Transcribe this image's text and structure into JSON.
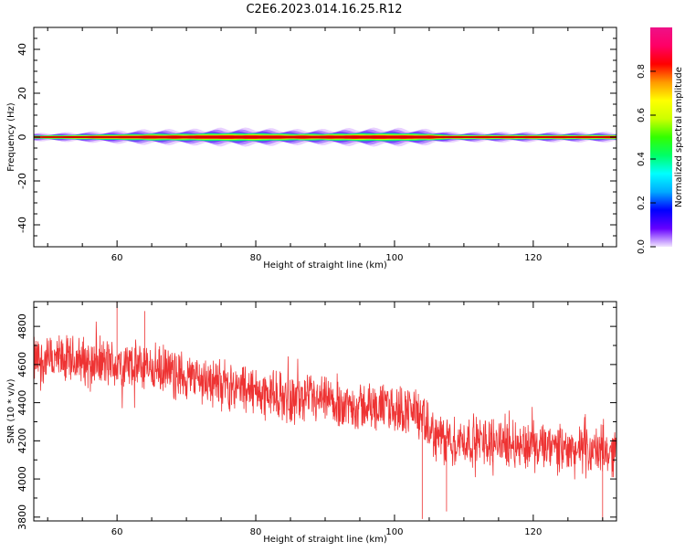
{
  "title": "C2E6.2023.014.16.25.R12",
  "chart_data": [
    {
      "type": "heatmap",
      "xlabel": "Height of straight line (km)",
      "ylabel": "Frequency (Hz)",
      "xlim": [
        48,
        132
      ],
      "ylim": [
        -50,
        50
      ],
      "xticks": [
        60,
        80,
        100,
        120
      ],
      "yticks": [
        -40,
        -20,
        0,
        20,
        40
      ],
      "description_value": "spectral energy concentrated near 0 Hz across all heights",
      "center_frequency": 0,
      "band_halfwidth": [
        [
          48,
          1.5
        ],
        [
          55,
          2
        ],
        [
          60,
          2.5
        ],
        [
          65,
          3
        ],
        [
          70,
          3
        ],
        [
          75,
          3.5
        ],
        [
          80,
          3.5
        ],
        [
          85,
          3
        ],
        [
          90,
          3
        ],
        [
          95,
          3.5
        ],
        [
          100,
          3.5
        ],
        [
          105,
          3
        ],
        [
          108,
          2
        ],
        [
          115,
          2
        ],
        [
          120,
          2
        ],
        [
          125,
          2
        ],
        [
          132,
          2
        ]
      ],
      "colorbar": {
        "label": "Normalized spectral amplitude",
        "range": [
          0,
          1
        ],
        "ticks": [
          "0.0",
          "0.2",
          "0.4",
          "0.6",
          "0.8"
        ],
        "colors": [
          "#f2e6ff",
          "#6600ff",
          "#0000ff",
          "#00aaff",
          "#00ffff",
          "#00ff66",
          "#33ff00",
          "#ccff00",
          "#ffff00",
          "#ff9900",
          "#ff0000",
          "#ff0066",
          "#ee1188"
        ]
      }
    },
    {
      "type": "line",
      "xlabel": "Height of straight line (km)",
      "ylabel": "SNR (10 * v/v)",
      "xlim": [
        48,
        132
      ],
      "ylim": [
        3780,
        4930
      ],
      "xticks": [
        60,
        80,
        100,
        120
      ],
      "yticks": [
        3800,
        4000,
        4200,
        4400,
        4600,
        4800
      ],
      "color": "#ee3333",
      "trend": {
        "x": [
          48,
          55,
          60,
          65,
          70,
          75,
          80,
          85,
          90,
          95,
          100,
          103,
          105,
          108,
          110,
          115,
          120,
          125,
          132
        ],
        "y": [
          4620,
          4620,
          4600,
          4580,
          4540,
          4500,
          4460,
          4420,
          4400,
          4380,
          4370,
          4360,
          4250,
          4190,
          4200,
          4200,
          4170,
          4150,
          4140
        ]
      },
      "noise_amplitude": 110,
      "spike_points": [
        [
          60,
          4930
        ],
        [
          64,
          4880
        ],
        [
          107.5,
          3830
        ],
        [
          104,
          3790
        ],
        [
          130,
          3780
        ]
      ]
    }
  ]
}
